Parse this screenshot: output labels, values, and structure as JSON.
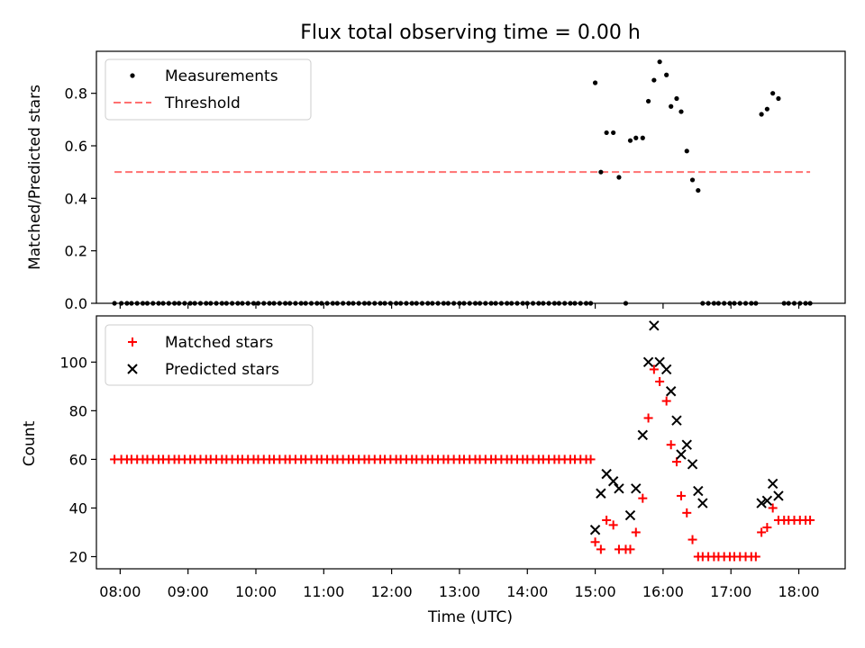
{
  "figure": {
    "title": "Flux total observing time = 0.00 h",
    "xlabel": "Time (UTC)"
  },
  "chart_data": [
    {
      "type": "scatter",
      "ylabel": "Matched/Predicted stars",
      "xlim": [
        "07:39",
        "18:41"
      ],
      "ylim": [
        0,
        0.96
      ],
      "yticks": [
        "0.0",
        "0.2",
        "0.4",
        "0.6",
        "0.8"
      ],
      "grid": false,
      "legend_position": "top-left",
      "series": [
        {
          "name": "Measurements",
          "kind": "points",
          "color": "#000000",
          "x": [
            "07:55",
            "08:01",
            "08:06",
            "08:10",
            "08:15",
            "08:20",
            "08:24",
            "08:29",
            "08:34",
            "08:38",
            "08:43",
            "08:48",
            "08:52",
            "08:57",
            "09:02",
            "09:06",
            "09:11",
            "09:16",
            "09:20",
            "09:25",
            "09:30",
            "09:34",
            "09:39",
            "09:44",
            "09:48",
            "09:53",
            "09:58",
            "10:02",
            "10:07",
            "10:12",
            "10:16",
            "10:21",
            "10:26",
            "10:30",
            "10:35",
            "10:40",
            "10:44",
            "10:49",
            "10:54",
            "10:58",
            "11:03",
            "11:08",
            "11:12",
            "11:17",
            "11:22",
            "11:26",
            "11:31",
            "11:36",
            "11:40",
            "11:45",
            "11:50",
            "11:54",
            "11:59",
            "12:04",
            "12:08",
            "12:13",
            "12:18",
            "12:22",
            "12:27",
            "12:32",
            "12:36",
            "12:41",
            "12:46",
            "12:50",
            "12:55",
            "13:00",
            "13:04",
            "13:09",
            "13:14",
            "13:18",
            "13:23",
            "13:28",
            "13:32",
            "13:37",
            "13:42",
            "13:46",
            "13:51",
            "13:56",
            "14:00",
            "14:05",
            "14:10",
            "14:14",
            "14:19",
            "14:24",
            "14:28",
            "14:33",
            "14:38",
            "14:42",
            "14:47",
            "14:52",
            "14:56",
            "15:00",
            "15:05",
            "15:10",
            "15:16",
            "15:21",
            "15:27",
            "15:31",
            "15:36",
            "15:42",
            "15:47",
            "15:52",
            "15:57",
            "16:03",
            "16:07",
            "16:12",
            "16:16",
            "16:21",
            "16:26",
            "16:31",
            "16:35",
            "16:40",
            "16:45",
            "16:49",
            "16:54",
            "16:59",
            "17:03",
            "17:08",
            "17:13",
            "17:18",
            "17:22",
            "17:27",
            "17:32",
            "17:37",
            "17:42",
            "17:47",
            "17:51",
            "17:56",
            "18:01",
            "18:06",
            "18:10"
          ],
          "y": [
            0,
            0,
            0,
            0,
            0,
            0,
            0,
            0,
            0,
            0,
            0,
            0,
            0,
            0,
            0,
            0,
            0,
            0,
            0,
            0,
            0,
            0,
            0,
            0,
            0,
            0,
            0,
            0,
            0,
            0,
            0,
            0,
            0,
            0,
            0,
            0,
            0,
            0,
            0,
            0,
            0,
            0,
            0,
            0,
            0,
            0,
            0,
            0,
            0,
            0,
            0,
            0,
            0,
            0,
            0,
            0,
            0,
            0,
            0,
            0,
            0,
            0,
            0,
            0,
            0,
            0,
            0,
            0,
            0,
            0,
            0,
            0,
            0,
            0,
            0,
            0,
            0,
            0,
            0,
            0,
            0,
            0,
            0,
            0,
            0,
            0,
            0,
            0,
            0,
            0,
            0,
            0.84,
            0.5,
            0.65,
            0.65,
            0.48,
            0,
            0.62,
            0.63,
            0.63,
            0.77,
            0.85,
            0.92,
            0.87,
            0.75,
            0.78,
            0.73,
            0.58,
            0.47,
            0.43,
            0,
            0,
            0,
            0,
            0,
            0,
            0,
            0,
            0,
            0,
            0,
            0.72,
            0.74,
            0.8,
            0.78,
            0,
            0,
            0,
            0,
            0,
            0
          ]
        },
        {
          "name": "Threshold",
          "kind": "dashed-line",
          "color": "#ff7070",
          "x": [
            "07:55",
            "18:10"
          ],
          "y": [
            0.5,
            0.5
          ]
        }
      ]
    },
    {
      "type": "scatter",
      "ylabel": "Count",
      "xlim": [
        "07:39",
        "18:41"
      ],
      "ylim": [
        15,
        119
      ],
      "yticks": [
        "20",
        "40",
        "60",
        "80",
        "100"
      ],
      "xticks": [
        "08:00",
        "09:00",
        "10:00",
        "11:00",
        "12:00",
        "13:00",
        "14:00",
        "15:00",
        "16:00",
        "17:00",
        "18:00"
      ],
      "grid": false,
      "legend_position": "top-left",
      "series": [
        {
          "name": "Matched stars",
          "kind": "plus",
          "color": "#ff0000",
          "x": [
            "07:55",
            "08:01",
            "08:06",
            "08:10",
            "08:15",
            "08:20",
            "08:24",
            "08:29",
            "08:34",
            "08:38",
            "08:43",
            "08:48",
            "08:52",
            "08:57",
            "09:02",
            "09:06",
            "09:11",
            "09:16",
            "09:20",
            "09:25",
            "09:30",
            "09:34",
            "09:39",
            "09:44",
            "09:48",
            "09:53",
            "09:58",
            "10:02",
            "10:07",
            "10:12",
            "10:16",
            "10:21",
            "10:26",
            "10:30",
            "10:35",
            "10:40",
            "10:44",
            "10:49",
            "10:54",
            "10:58",
            "11:03",
            "11:08",
            "11:12",
            "11:17",
            "11:22",
            "11:26",
            "11:31",
            "11:36",
            "11:40",
            "11:45",
            "11:50",
            "11:54",
            "11:59",
            "12:04",
            "12:08",
            "12:13",
            "12:18",
            "12:22",
            "12:27",
            "12:32",
            "12:36",
            "12:41",
            "12:46",
            "12:50",
            "12:55",
            "13:00",
            "13:04",
            "13:09",
            "13:14",
            "13:18",
            "13:23",
            "13:28",
            "13:32",
            "13:37",
            "13:42",
            "13:46",
            "13:51",
            "13:56",
            "14:00",
            "14:05",
            "14:10",
            "14:14",
            "14:19",
            "14:24",
            "14:28",
            "14:33",
            "14:38",
            "14:42",
            "14:47",
            "14:52",
            "14:56",
            "15:00",
            "15:05",
            "15:10",
            "15:16",
            "15:21",
            "15:27",
            "15:31",
            "15:36",
            "15:42",
            "15:47",
            "15:52",
            "15:57",
            "16:03",
            "16:07",
            "16:12",
            "16:16",
            "16:21",
            "16:26",
            "16:31",
            "16:35",
            "16:40",
            "16:45",
            "16:49",
            "16:54",
            "16:59",
            "17:03",
            "17:08",
            "17:13",
            "17:18",
            "17:22",
            "17:27",
            "17:32",
            "17:37",
            "17:42",
            "17:47",
            "17:51",
            "17:56",
            "18:01",
            "18:06",
            "18:10"
          ],
          "y": [
            60,
            60,
            60,
            60,
            60,
            60,
            60,
            60,
            60,
            60,
            60,
            60,
            60,
            60,
            60,
            60,
            60,
            60,
            60,
            60,
            60,
            60,
            60,
            60,
            60,
            60,
            60,
            60,
            60,
            60,
            60,
            60,
            60,
            60,
            60,
            60,
            60,
            60,
            60,
            60,
            60,
            60,
            60,
            60,
            60,
            60,
            60,
            60,
            60,
            60,
            60,
            60,
            60,
            60,
            60,
            60,
            60,
            60,
            60,
            60,
            60,
            60,
            60,
            60,
            60,
            60,
            60,
            60,
            60,
            60,
            60,
            60,
            60,
            60,
            60,
            60,
            60,
            60,
            60,
            60,
            60,
            60,
            60,
            60,
            60,
            60,
            60,
            60,
            60,
            60,
            60,
            26,
            23,
            35,
            33,
            23,
            23,
            23,
            30,
            44,
            77,
            97,
            92,
            84,
            66,
            59,
            45,
            38,
            27,
            20,
            20,
            20,
            20,
            20,
            20,
            20,
            20,
            20,
            20,
            20,
            20,
            30,
            32,
            40,
            35,
            35,
            35,
            35,
            35,
            35,
            35
          ]
        },
        {
          "name": "Predicted stars",
          "kind": "cross",
          "color": "#000000",
          "x": [
            "15:00",
            "15:05",
            "15:10",
            "15:16",
            "15:21",
            "15:31",
            "15:36",
            "15:42",
            "15:47",
            "15:52",
            "15:57",
            "16:03",
            "16:07",
            "16:12",
            "16:16",
            "16:21",
            "16:26",
            "16:31",
            "16:35",
            "17:27",
            "17:32",
            "17:37",
            "17:42"
          ],
          "y": [
            31,
            46,
            54,
            51,
            48,
            37,
            48,
            70,
            100,
            115,
            100,
            97,
            88,
            76,
            62,
            66,
            58,
            47,
            42,
            42,
            43,
            50,
            45
          ]
        }
      ]
    }
  ]
}
